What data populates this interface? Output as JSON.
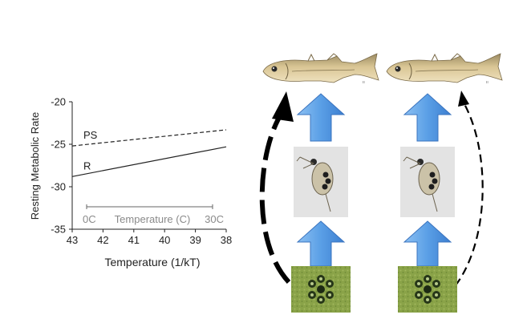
{
  "chart_data": {
    "type": "line",
    "ylabel": "Resting Metabolic Rate",
    "xlabel": "Temperature (1/kT)",
    "x_ticks": [
      "43",
      "42",
      "41",
      "40",
      "39",
      "38"
    ],
    "y_ticks": [
      "-20",
      "-25",
      "-30",
      "-35"
    ],
    "xlim": [
      43,
      38
    ],
    "ylim": [
      -35,
      -20
    ],
    "series": [
      {
        "name": "PS",
        "style": "dashed",
        "x": [
          43,
          38
        ],
        "y": [
          -25.2,
          -23.3
        ]
      },
      {
        "name": "R",
        "style": "solid",
        "x": [
          43,
          38
        ],
        "y": [
          -28.8,
          -25.3
        ]
      }
    ],
    "inset_scale": {
      "label": "Temperature (C)",
      "left_label": "0C",
      "right_label": "30C"
    }
  },
  "food_web": {
    "trophic_levels": [
      "fish",
      "zooplankton",
      "phytoplankton"
    ],
    "colors": {
      "arrow_blue": "#5a9fe6",
      "algae_green": "#8aa348",
      "fish_tan": "#d8c08c"
    },
    "icons": [
      "stickleback-fish-icon",
      "daphnia-icon",
      "algae-colony-icon"
    ]
  }
}
